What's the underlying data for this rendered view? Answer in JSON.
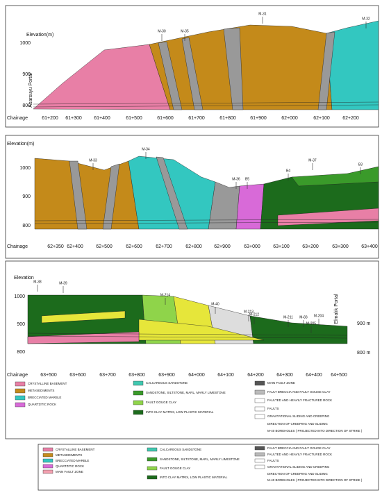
{
  "panels": [
    {
      "elevation_label": "Elevation(m)",
      "elevation_ticks": [
        "1000",
        "900",
        "800"
      ],
      "chainage_label": "Chainage",
      "chainages": [
        "61+200",
        "61+300",
        "61+400",
        "61+500",
        "61+600",
        "61+700",
        "61+800",
        "61+900",
        "62+000",
        "62+100",
        "62+200"
      ],
      "boreholes": [
        "M-30",
        "M-35",
        "M-31",
        "M-32"
      ],
      "portal": "Asarsuyu Portal"
    },
    {
      "elevation_label": "Elevation(m)",
      "elevation_ticks": [
        "1000",
        "900",
        "800"
      ],
      "chainage_label": "Chainage",
      "chainages": [
        "62+350",
        "62+400",
        "62+500",
        "62+600",
        "62+700",
        "62+800",
        "62+900",
        "63+000",
        "63+100",
        "63+200",
        "63+300",
        "63+400"
      ],
      "boreholes": [
        "M-33",
        "M-34",
        "M-36",
        "B5",
        "B4",
        "M-37",
        "B3"
      ]
    },
    {
      "elevation_label": "Elevation",
      "elevation_ticks": [
        "1000",
        "900",
        "800"
      ],
      "right_ticks": [
        "900 m",
        "800 m"
      ],
      "chainage_label": "Chainage",
      "chainages": [
        "63+500",
        "63+600",
        "63+700",
        "63+800",
        "63+900",
        "64+000",
        "64+100",
        "64+200",
        "64+300",
        "64+400",
        "64+500"
      ],
      "boreholes": [
        "M-38",
        "M-39",
        "M-214",
        "M-40",
        "M-213",
        "M-212",
        "M-211",
        "M-83",
        "M-204",
        "M-205"
      ],
      "portal": "Elmalık Portal"
    }
  ],
  "legend_1": [
    "CRYSTALLINE BASEMENT",
    "METASEDIMENTS",
    "BRECCIATED MARBLE",
    "QUARTZITIC ROCK",
    "CALCAREOUS SANDSTONE",
    "SANDSTONE, SILTSTONE, MARL, MARLY LIMESTONE",
    "FAULT GOUGE CLAY",
    "INTO CLAY MATRIX, LOW PLASTIC MATERIAL",
    "MAIN FAULT ZONE",
    "FAULT BRECCIA AND FAULT GOUGE CLAY",
    "FAULTED AND HEAVILY FRACTURED ROCK",
    "FAULTS",
    "GRAVITATIONAL SLIDING AND CREEPING",
    "DIRECTION OF CREEPING AND SLIDING",
    "M-40 BOREHOLES ( PROJECTED INTO DIRECTION OF STRIKE )"
  ],
  "legend_2": [
    "CRYSTALLINE BASEMENT",
    "METASEDIMENTS",
    "BRECCIATED MARBLE",
    "QUARTZITIC ROCK",
    "MAIN FAULT ZONE",
    "CALCAREOUS SANDSTONE",
    "SANDSTONE, SILTSTONE, MARL, MARLY LIMESTONE",
    "FAULT GOUGE CLAY",
    "INTO CLAY MATRIX, LOW PLASTIC MATERIAL",
    "FAULT BRECCIA AND FAULT GOUGE CLAY",
    "FAULTED AND HEAVILY FRACTURED ROCK",
    "FAULTS",
    "GRAVITATIONAL SLIDING AND CREEPING",
    "DIRECTION OF CREEPING AND SLIDING",
    "M-40 BOREHOLES ( PROJECTED INTO DIRECTION OF STRIKE )"
  ]
}
